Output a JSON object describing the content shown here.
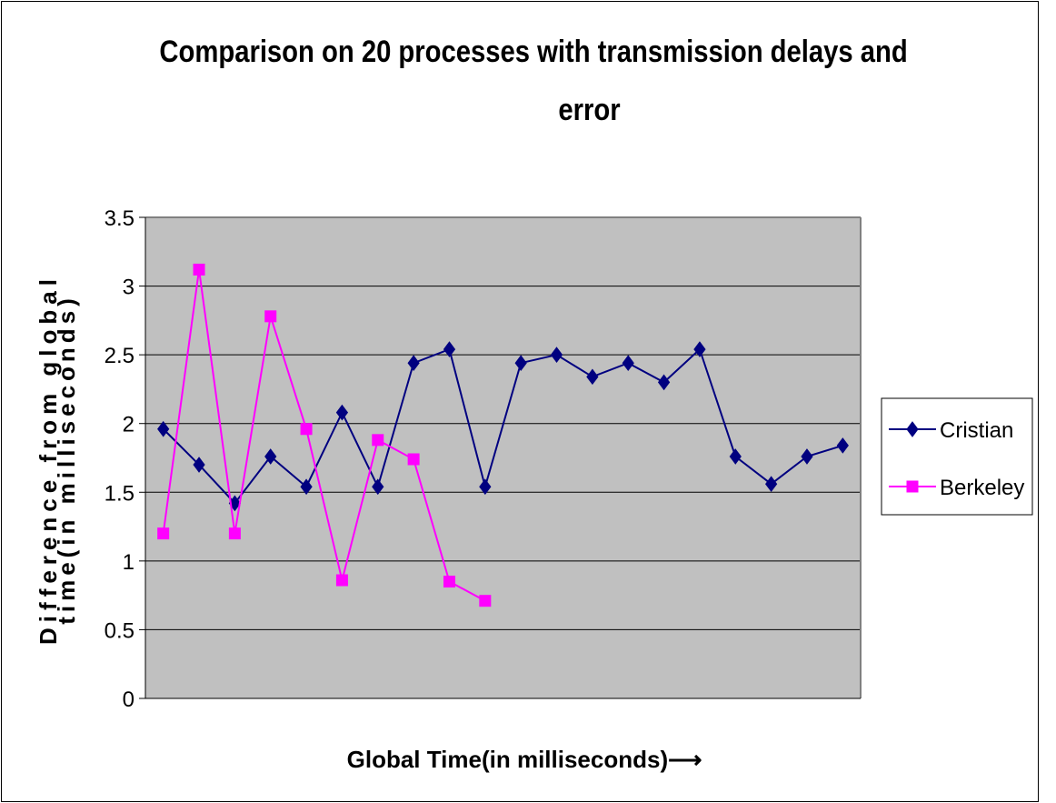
{
  "chart_data": {
    "type": "line",
    "title_lines": [
      "Comparison on 20 processes with transmission delays and",
      "error"
    ],
    "xlabel": "Global Time(in milliseconds)⟶",
    "ylabel_lines": [
      "Difference from global",
      "time(in milliseconds)"
    ],
    "ylim": [
      0,
      3.5
    ],
    "yticks": [
      "0",
      "0.5",
      "1",
      "1.5",
      "2",
      "2.5",
      "3",
      "3.5"
    ],
    "grid": true,
    "legend_position": "right",
    "plot_background": "#c0c0c0",
    "series": [
      {
        "name": "Cristian",
        "color": "#000080",
        "marker": "diamond",
        "values": [
          1.96,
          1.7,
          1.42,
          1.76,
          1.54,
          2.08,
          1.54,
          2.44,
          2.54,
          1.54,
          2.44,
          2.5,
          2.34,
          2.44,
          2.3,
          2.54,
          1.76,
          1.56,
          1.76,
          1.84
        ]
      },
      {
        "name": "Berkeley",
        "color": "#ff00ff",
        "marker": "square",
        "values": [
          1.2,
          3.12,
          1.2,
          2.78,
          1.96,
          0.86,
          1.88,
          1.74,
          0.85,
          0.71
        ]
      }
    ]
  }
}
